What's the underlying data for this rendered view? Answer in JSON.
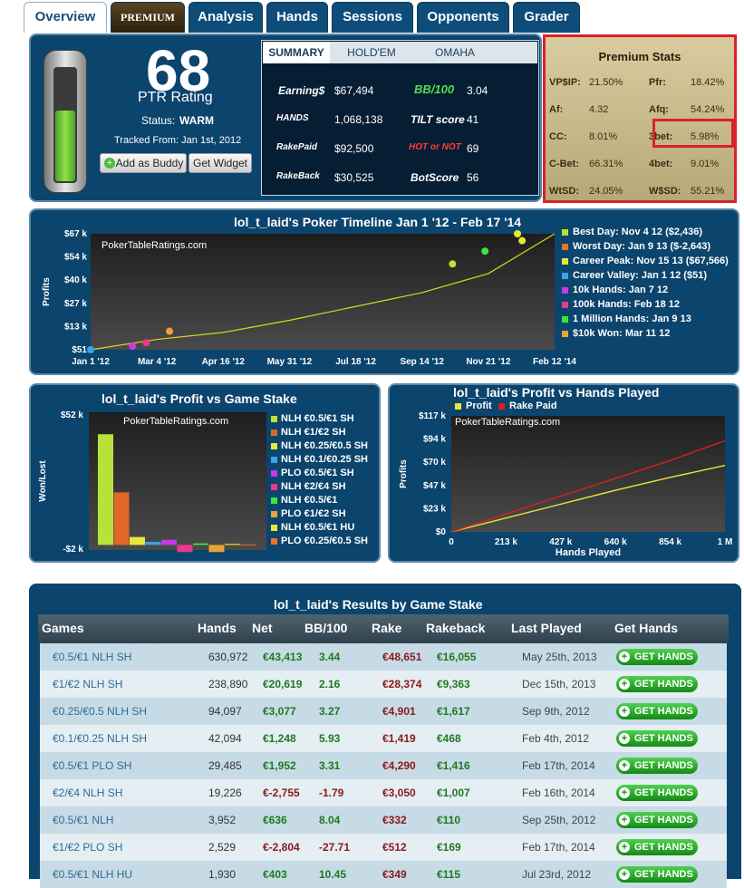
{
  "tabs": [
    "Overview",
    "PREMIUM",
    "Analysis",
    "Hands",
    "Sessions",
    "Opponents",
    "Grader"
  ],
  "rating": {
    "value": "68",
    "label": "PTR Rating",
    "status_label": "Status:",
    "status": "WARM",
    "tracked": "Tracked From: Jan 1st, 2012",
    "buddy": "Add as Buddy",
    "widget": "Get Widget",
    "level": 0.63
  },
  "summary": {
    "tabs": [
      "SUMMARY",
      "HOLD'EM",
      "OMAHA"
    ],
    "earnings_label": "Earning$",
    "earnings": "$67,494",
    "bb_label": "BB/100",
    "bb": "3.04",
    "hands_label": "HANDS",
    "hands": "1,068,138",
    "tilt_label": "TILT score",
    "tilt": "41",
    "rakepaid_label": "RakePaid",
    "rakepaid": "$92,500",
    "hotornot_label": "HOT or NOT",
    "hotornot": "69",
    "rakeback_label": "RakeBack",
    "rakeback": "$30,525",
    "bot_label": "BotScore",
    "bot": "56"
  },
  "premium": {
    "title": "Premium Stats",
    "stats": [
      {
        "l": "VP$IP:",
        "v": "21.50%"
      },
      {
        "l": "Pfr:",
        "v": "18.42%"
      },
      {
        "l": "Af:",
        "v": "4.32"
      },
      {
        "l": "Afq:",
        "v": "54.24%"
      },
      {
        "l": "CC:",
        "v": "8.01%"
      },
      {
        "l": "3bet:",
        "v": "5.98%"
      },
      {
        "l": "C-Bet:",
        "v": "66.31%"
      },
      {
        "l": "4bet:",
        "v": "9.01%"
      },
      {
        "l": "WtSD:",
        "v": "24.05%"
      },
      {
        "l": "W$SD:",
        "v": "55.21%"
      }
    ]
  },
  "timeline": {
    "title": "lol_t_laid's Poker Timeline Jan 1 '12 - Feb 17 '14",
    "watermark": "PokerTableRatings.com",
    "ylabel": "Profits",
    "legend": [
      {
        "t": "Best Day: Nov 4 12 ($2,436)",
        "c": "#b7e23a"
      },
      {
        "t": "Worst Day: Jan 9 13 ($-2,643)",
        "c": "#e8742a"
      },
      {
        "t": "Career Peak: Nov 15 13 ($67,566)",
        "c": "#e6e83a"
      },
      {
        "t": "Career Valley: Jan 1 12 ($51)",
        "c": "#3aa2e8"
      },
      {
        "t": "10k Hands: Jan 7 12",
        "c": "#c53ae8"
      },
      {
        "t": "100k Hands: Feb 18 12",
        "c": "#e83a8a"
      },
      {
        "t": "1 Million Hands: Jan 9 13",
        "c": "#3ae83a"
      },
      {
        "t": "$10k Won: Mar 11 12",
        "c": "#e8a23a"
      }
    ]
  },
  "stake": {
    "title": "lol_t_laid's Profit vs Game Stake",
    "watermark": "PokerTableRatings.com",
    "ylabel": "Won/Lost"
  },
  "handsplayed": {
    "title": "lol_t_laid's Profit vs Hands Played",
    "watermark": "PokerTableRatings.com",
    "ylabel": "Profits",
    "xlabel": "Hands Played",
    "legend": [
      "Profit",
      "Rake Paid"
    ]
  },
  "chart_data": [
    {
      "type": "line",
      "title": "lol_t_laid's Poker Timeline Jan 1 '12 - Feb 17 '14",
      "ylabel": "Profits",
      "x": [
        "Jan 1 '12",
        "Mar 4 '12",
        "Apr 16 '12",
        "May 31 '12",
        "Jul 18 '12",
        "Sep 14 '12",
        "Nov 21 '12",
        "Feb 12 '14"
      ],
      "yticks": [
        "$51",
        "$13 k",
        "$27 k",
        "$40 k",
        "$54 k",
        "$67 k"
      ],
      "series": [
        {
          "values": [
            0,
            6,
            10,
            17,
            25,
            33,
            44,
            67
          ]
        }
      ]
    },
    {
      "type": "bar",
      "title": "lol_t_laid's Profit vs Game Stake",
      "ylabel": "Won/Lost",
      "yticks": [
        "$52 k",
        "-$2 k"
      ],
      "categories": [
        "NLH €0.5/€1 SH",
        "NLH €1/€2 SH",
        "NLH €0.25/€0.5 SH",
        "NLH €0.1/€0.25 SH",
        "PLO €0.5/€1 SH",
        "NLH €2/€4 SH",
        "NLH €0.5/€1",
        "PLO €1/€2 SH",
        "NLH €0.5/€1 HU",
        "PLO €0.25/€0.5 SH"
      ],
      "values": [
        43.4,
        20.6,
        3.1,
        1.2,
        2.0,
        -2.8,
        0.6,
        -2.8,
        0.4,
        0.2
      ],
      "colors": [
        "#b7e23a",
        "#e0672a",
        "#e6e83a",
        "#3aa2e8",
        "#c53ae8",
        "#e83a8a",
        "#3ae83a",
        "#e8a23a",
        "#e8e83a",
        "#e8742a"
      ]
    },
    {
      "type": "line",
      "title": "lol_t_laid's Profit vs Hands Played",
      "xlabel": "Hands Played",
      "ylabel": "Profits",
      "x": [
        "0",
        "213 k",
        "427 k",
        "640 k",
        "854 k",
        "1 M"
      ],
      "yticks": [
        "$0",
        "$23 k",
        "$47 k",
        "$70 k",
        "$94 k",
        "$117 k"
      ],
      "series": [
        {
          "name": "Profit",
          "values": [
            0,
            14,
            28,
            42,
            55,
            67
          ]
        },
        {
          "name": "Rake Paid",
          "values": [
            0,
            18,
            36,
            54,
            72,
            92
          ]
        }
      ]
    }
  ],
  "results": {
    "title": "lol_t_laid's Results by Game Stake",
    "headers": [
      "Games",
      "Hands",
      "Net",
      "BB/100",
      "Rake",
      "Rakeback",
      "Last Played",
      "Get Hands"
    ],
    "get_label": "GET HANDS",
    "rows": [
      [
        "€0.5/€1 NLH SH",
        "630,972",
        "€43,413",
        "3.44",
        "€48,651",
        "€16,055",
        "May 25th, 2013"
      ],
      [
        "€1/€2 NLH SH",
        "238,890",
        "€20,619",
        "2.16",
        "€28,374",
        "€9,363",
        "Dec 15th, 2013"
      ],
      [
        "€0.25/€0.5 NLH SH",
        "94,097",
        "€3,077",
        "3.27",
        "€4,901",
        "€1,617",
        "Sep 9th, 2012"
      ],
      [
        "€0.1/€0.25 NLH SH",
        "42,094",
        "€1,248",
        "5.93",
        "€1,419",
        "€468",
        "Feb 4th, 2012"
      ],
      [
        "€0.5/€1 PLO SH",
        "29,485",
        "€1,952",
        "3.31",
        "€4,290",
        "€1,416",
        "Feb 17th, 2014"
      ],
      [
        "€2/€4 NLH SH",
        "19,226",
        "€-2,755",
        "-1.79",
        "€3,050",
        "€1,007",
        "Feb 16th, 2014"
      ],
      [
        "€0.5/€1 NLH",
        "3,952",
        "€636",
        "8.04",
        "€332",
        "€110",
        "Sep 25th, 2012"
      ],
      [
        "€1/€2 PLO SH",
        "2,529",
        "€-2,804",
        "-27.71",
        "€512",
        "€169",
        "Feb 17th, 2014"
      ],
      [
        "€0.5/€1 NLH HU",
        "1,930",
        "€403",
        "10.45",
        "€349",
        "€115",
        "Jul 23rd, 2012"
      ]
    ]
  }
}
